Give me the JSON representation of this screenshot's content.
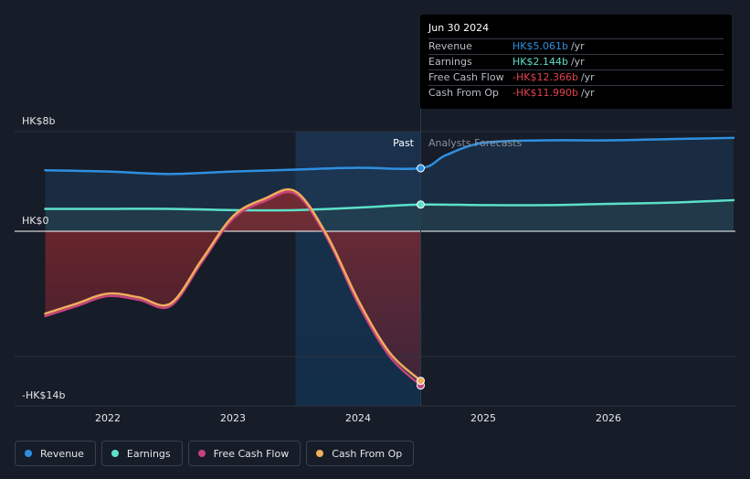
{
  "chart_data": {
    "type": "line",
    "y_axis": {
      "top_label": "HK$8b",
      "zero_label": "HK$0",
      "bottom_label": "-HK$14b",
      "ylim": [
        -14,
        8
      ]
    },
    "x_axis": {
      "ticks": [
        "2022",
        "2023",
        "2024",
        "2025",
        "2026"
      ],
      "xlim": [
        2021.5,
        2027.0
      ]
    },
    "divider_labels": {
      "past": "Past",
      "forecast": "Analysts Forecasts"
    },
    "past_end_x": 2024.5,
    "highlight_start_x": 2023.5,
    "series": [
      {
        "name": "Revenue",
        "color": "#2e8fe0",
        "x": [
          2021.5,
          2022.0,
          2022.5,
          2023.0,
          2023.5,
          2024.0,
          2024.5,
          2024.7,
          2025.0,
          2025.5,
          2026.0,
          2026.5,
          2027.0
        ],
        "values": [
          4.9,
          4.8,
          4.6,
          4.8,
          4.95,
          5.1,
          5.061,
          6.1,
          7.1,
          7.3,
          7.3,
          7.4,
          7.5
        ]
      },
      {
        "name": "Earnings",
        "color": "#5ce0c8",
        "x": [
          2021.5,
          2022.0,
          2022.5,
          2023.0,
          2023.5,
          2024.0,
          2024.5,
          2025.0,
          2025.5,
          2026.0,
          2026.5,
          2027.0
        ],
        "values": [
          1.8,
          1.8,
          1.8,
          1.7,
          1.7,
          1.9,
          2.144,
          2.1,
          2.1,
          2.2,
          2.3,
          2.5
        ]
      },
      {
        "name": "Free Cash Flow",
        "color": "#c6427d",
        "x": [
          2021.5,
          2021.75,
          2022.0,
          2022.25,
          2022.5,
          2022.75,
          2023.0,
          2023.25,
          2023.5,
          2023.75,
          2024.0,
          2024.25,
          2024.5
        ],
        "values": [
          -6.8,
          -6.0,
          -5.2,
          -5.5,
          -6.0,
          -2.5,
          1.0,
          2.4,
          3.0,
          -0.5,
          -5.8,
          -10.0,
          -12.366
        ]
      },
      {
        "name": "Cash From Op",
        "color": "#f0ad5b",
        "x": [
          2021.5,
          2021.75,
          2022.0,
          2022.25,
          2022.5,
          2022.75,
          2023.0,
          2023.25,
          2023.5,
          2023.75,
          2024.0,
          2024.25,
          2024.5
        ],
        "values": [
          -6.6,
          -5.8,
          -5.0,
          -5.3,
          -5.8,
          -2.3,
          1.2,
          2.6,
          3.2,
          -0.3,
          -5.5,
          -9.7,
          -11.99
        ]
      }
    ],
    "tooltip": {
      "date": "Jun 30 2024",
      "rows": [
        {
          "label": "Revenue",
          "value": "HK$5.061b",
          "unit": "/yr",
          "color": "#2e8fe0"
        },
        {
          "label": "Earnings",
          "value": "HK$2.144b",
          "unit": "/yr",
          "color": "#5ce0c8"
        },
        {
          "label": "Free Cash Flow",
          "value": "-HK$12.366b",
          "unit": "/yr",
          "color": "#e0434f"
        },
        {
          "label": "Cash From Op",
          "value": "-HK$11.990b",
          "unit": "/yr",
          "color": "#e0434f"
        }
      ]
    },
    "legend": [
      {
        "label": "Revenue",
        "color": "#2e8fe0"
      },
      {
        "label": "Earnings",
        "color": "#5ce0c8"
      },
      {
        "label": "Free Cash Flow",
        "color": "#c6427d"
      },
      {
        "label": "Cash From Op",
        "color": "#f0ad5b"
      }
    ]
  }
}
